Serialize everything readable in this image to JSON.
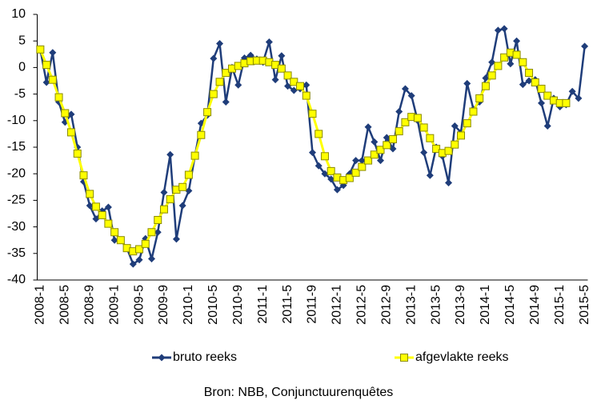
{
  "chart_data": {
    "type": "line",
    "caption": "Bron: NBB, Conjunctuurenquêtes",
    "categories": [
      "2008-1",
      null,
      null,
      null,
      "2008-5",
      null,
      null,
      null,
      "2008-9",
      null,
      null,
      null,
      "2009-1",
      null,
      null,
      null,
      "2009-5",
      null,
      null,
      null,
      "2009-9",
      null,
      null,
      null,
      "2010-1",
      null,
      null,
      null,
      "2010-5",
      null,
      null,
      null,
      "2010-9",
      null,
      null,
      null,
      "2011-1",
      null,
      null,
      null,
      "2011-5",
      null,
      null,
      null,
      "2011-9",
      null,
      null,
      null,
      "2012-1",
      null,
      null,
      null,
      "2012-5",
      null,
      null,
      null,
      "2012-9",
      null,
      null,
      null,
      "2013-1",
      null,
      null,
      null,
      "2013-5",
      null,
      null,
      null,
      "2013-9",
      null,
      null,
      null,
      "2014-1",
      null,
      null,
      null,
      "2014-5",
      null,
      null,
      null,
      "2014-9",
      null,
      null,
      null,
      "2015-1",
      null,
      null,
      null,
      "2015-5"
    ],
    "series": [
      {
        "name": "bruto reeks",
        "color": "#1f3d7a",
        "marker": "diamond",
        "values": [
          3.4,
          -2.8,
          2.8,
          -6.5,
          -10.3,
          -8.8,
          -15,
          -21.5,
          -26,
          -28.5,
          -27,
          -26.3,
          -32.5,
          -32.5,
          -34,
          -37,
          -36.2,
          -32.2,
          -36,
          -31,
          -23.5,
          -16.4,
          -32.3,
          -26,
          -23.2,
          -16.6,
          -10.5,
          -9,
          1.7,
          4.5,
          -6.5,
          0,
          -3.3,
          1.8,
          2.3,
          1.6,
          1,
          4.8,
          -2.3,
          2.2,
          -3.5,
          -4.3,
          -4,
          -3.3,
          -16,
          -18.5,
          -20,
          -21,
          -23,
          -22.2,
          -20,
          -17.5,
          -17.5,
          -11.2,
          -14,
          -17.5,
          -13.2,
          -15.3,
          -8.3,
          -4,
          -5.3,
          -10,
          -16,
          -20.3,
          -15,
          -16.7,
          -21.7,
          -11,
          -12.2,
          -3,
          -7.8,
          -6.5,
          -2,
          1,
          7,
          7.3,
          0.7,
          5,
          -3.2,
          -2.5,
          -2.3,
          -6.7,
          -11,
          -5.8,
          -7.4,
          -7,
          -4.5,
          -5.8,
          4
        ]
      },
      {
        "name": "afgevlakte reeks",
        "color": "#ffff00",
        "marker": "square",
        "values": [
          3.4,
          0.5,
          -2.3,
          -5.6,
          -8.6,
          -12.2,
          -16.2,
          -20.3,
          -23.8,
          -26.2,
          -27.8,
          -29.4,
          -31,
          -32.5,
          -34,
          -34.6,
          -34.2,
          -33.2,
          -31,
          -28.7,
          -26.7,
          -24.8,
          -23,
          -22.5,
          -20.2,
          -16.6,
          -12.7,
          -8.4,
          -5,
          -2.7,
          -1,
          -0.2,
          0.3,
          0.8,
          1.2,
          1.3,
          1.3,
          1,
          0.5,
          -0.2,
          -1.5,
          -2.7,
          -3.5,
          -5.3,
          -8.7,
          -12.5,
          -16.7,
          -19.5,
          -20.7,
          -21.2,
          -20.8,
          -19.8,
          -18.7,
          -17.5,
          -16.4,
          -15.5,
          -14.6,
          -13.5,
          -12,
          -10.3,
          -9.3,
          -9.5,
          -11.3,
          -13.3,
          -15.3,
          -16.1,
          -15.7,
          -14.5,
          -12.8,
          -10.5,
          -8.3,
          -5.8,
          -3.5,
          -1.5,
          0.3,
          1.9,
          2.8,
          2.4,
          1,
          -1,
          -2.8,
          -4,
          -5.3,
          -6.2,
          -6.7,
          -6.7,
          null,
          null,
          null
        ]
      }
    ],
    "ylim": [
      -40,
      10
    ],
    "yticks": [
      -40,
      -35,
      -30,
      -25,
      -20,
      -15,
      -10,
      -5,
      0,
      5,
      10
    ],
    "grid": false,
    "legend": "bottom"
  }
}
